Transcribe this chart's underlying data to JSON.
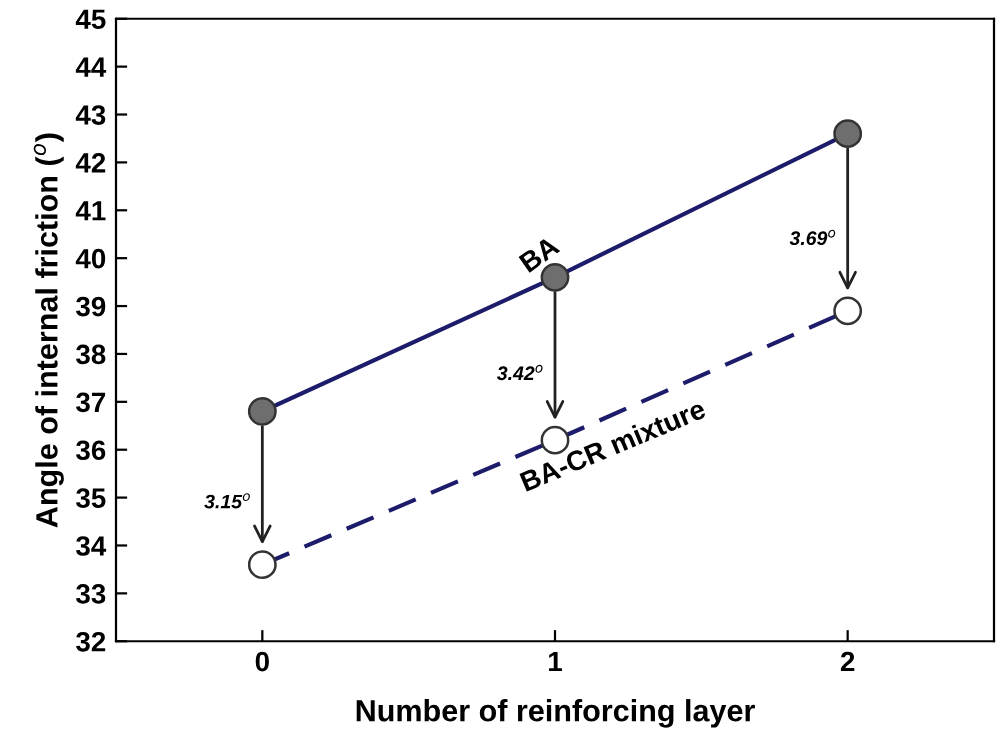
{
  "chart_data": {
    "type": "line",
    "xlabel": "Number of reinforcing layer",
    "ylabel": "Angle of internal friction ($^{o}$)",
    "x": [
      0,
      1,
      2
    ],
    "xlim": [
      -0.5,
      2.5
    ],
    "xticks": [
      0,
      1,
      2
    ],
    "ylim": [
      32,
      45
    ],
    "yticks": [
      32,
      33,
      34,
      35,
      36,
      37,
      38,
      39,
      40,
      41,
      42,
      43,
      44,
      45
    ],
    "marker": "circle",
    "grid": false,
    "legend": false,
    "series": [
      {
        "name": "BA",
        "color": "#1c1c6b",
        "colors": [
          "#6e6e6e",
          "#6e6e6e",
          "#6e6e6e"
        ],
        "line_style": "solid",
        "values": [
          36.8,
          39.6,
          42.6
        ]
      },
      {
        "name": "BA-CR mixture",
        "color": "#1c1c6b",
        "colors": [
          "#ffffff",
          "#ffffff",
          "#ffffff"
        ],
        "line_style": "dashed",
        "values": [
          33.6,
          36.2,
          38.9
        ]
      }
    ],
    "annotations": [
      "3.15$^{o}$",
      "3.42$^{o}$",
      "3.69$^{o}$"
    ]
  }
}
